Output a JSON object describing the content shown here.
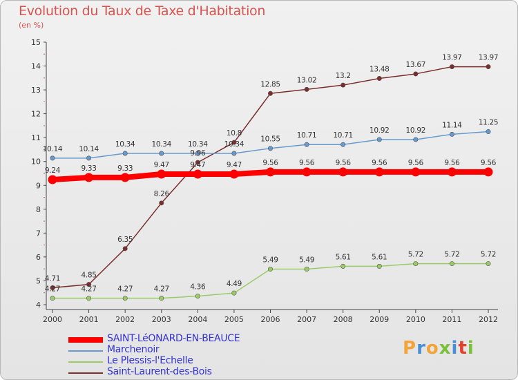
{
  "header": {
    "title": "Evolution du Taux de Taxe d'Habitation",
    "subtitle": "(en %)"
  },
  "brand": {
    "text": "Proxiti",
    "colors": [
      "#f2a33a",
      "#4a8fd4",
      "#f2a33a",
      "#7bbf3a",
      "#4a8fd4",
      "#e0442e",
      "#7bbf3a"
    ]
  },
  "chart_data": {
    "type": "line",
    "x": [
      2000,
      2001,
      2002,
      2003,
      2004,
      2005,
      2006,
      2007,
      2008,
      2009,
      2010,
      2011,
      2012
    ],
    "xlabel": "",
    "ylabel": "",
    "ylim": [
      4,
      15
    ],
    "yticks": [
      4,
      5,
      6,
      7,
      8,
      9,
      10,
      11,
      12,
      13,
      14,
      15
    ],
    "grid": false,
    "legend_position": "bottom-left",
    "series": [
      {
        "name": "SAINT-LéONARD-EN-BEAUCE",
        "color": "#ff0000",
        "values": [
          9.24,
          9.33,
          9.33,
          9.47,
          9.47,
          9.47,
          9.56,
          9.56,
          9.56,
          9.56,
          9.56,
          9.56,
          9.56
        ],
        "labels": [
          "9.24",
          "9.33",
          "9.33",
          "9.47",
          "9.47",
          "9.47",
          "9.56",
          "9.56",
          "9.56",
          "9.56",
          "9.56",
          "9.56",
          "9.56"
        ]
      },
      {
        "name": "Marchenoir",
        "color": "#6699cc",
        "values": [
          10.14,
          10.14,
          10.34,
          10.34,
          10.34,
          10.34,
          10.55,
          10.71,
          10.71,
          10.92,
          10.92,
          11.14,
          11.25
        ],
        "labels": [
          "10.14",
          "10.14",
          "10.34",
          "10.34",
          "10.34",
          "10.34",
          "10.55",
          "10.71",
          "10.71",
          "10.92",
          "10.92",
          "11.14",
          "11.25"
        ]
      },
      {
        "name": "Le Plessis-l'Echelle",
        "color": "#99cc66",
        "values": [
          4.27,
          4.27,
          4.27,
          4.27,
          4.36,
          4.49,
          5.49,
          5.49,
          5.61,
          5.61,
          5.72,
          5.72,
          5.72
        ],
        "labels": [
          "4.27",
          "4.27",
          "4.27",
          "4.27",
          "4.36",
          "4.49",
          "5.49",
          "5.49",
          "5.61",
          "5.61",
          "5.72",
          "5.72",
          "5.72"
        ]
      },
      {
        "name": "Saint-Laurent-des-Bois",
        "color": "#7a2e2e",
        "values": [
          4.71,
          4.85,
          6.35,
          8.26,
          9.96,
          10.8,
          12.85,
          13.02,
          13.2,
          13.48,
          13.67,
          13.97,
          13.97
        ],
        "labels": [
          "4.71",
          "4.85",
          "6.35",
          "8.26",
          "9.96",
          "10.8",
          "12.85",
          "13.02",
          "13.2",
          "13.48",
          "13.67",
          "13.97",
          "13.97"
        ]
      }
    ]
  }
}
